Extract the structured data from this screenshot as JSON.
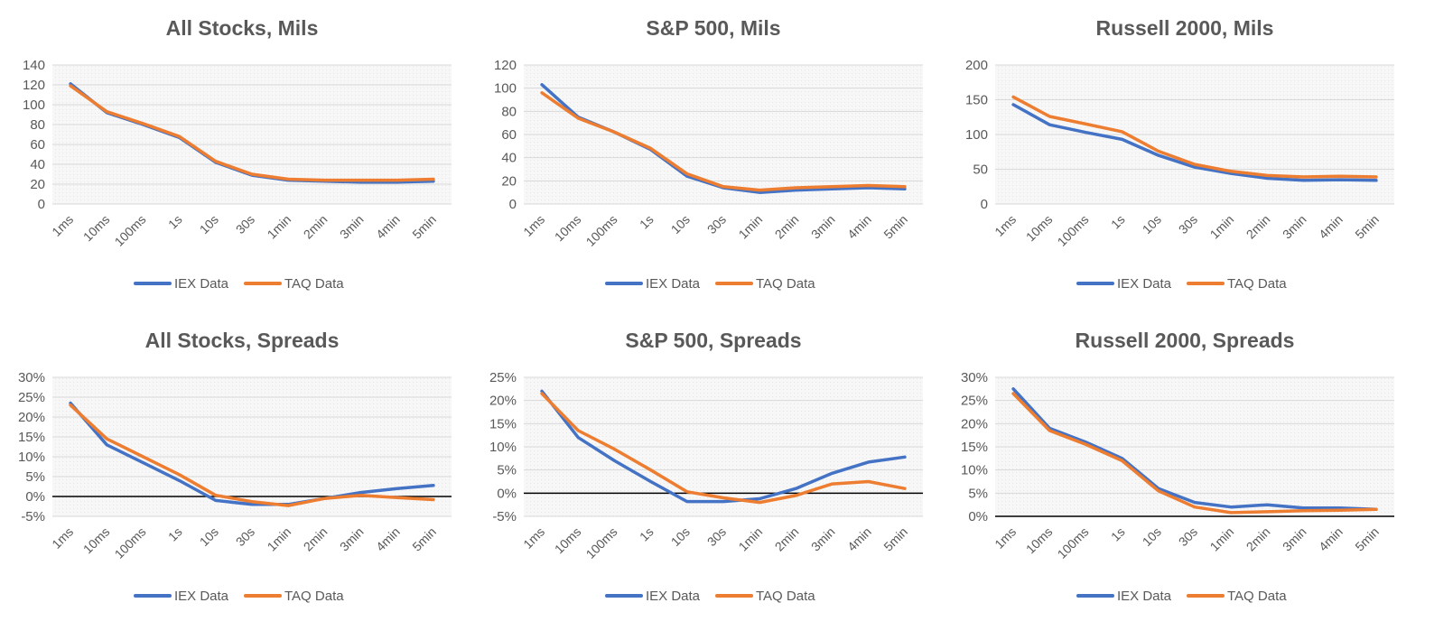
{
  "chart_data": [
    {
      "type": "line",
      "title": "All Stocks, Mils",
      "categories": [
        "1ms",
        "10ms",
        "100ms",
        "1s",
        "10s",
        "30s",
        "1min",
        "2min",
        "3min",
        "4min",
        "5min"
      ],
      "ylim": [
        0,
        140
      ],
      "yticks": [
        "0",
        "20",
        "40",
        "60",
        "80",
        "100",
        "120",
        "140"
      ],
      "ytick_values": [
        0,
        20,
        40,
        60,
        80,
        100,
        120,
        140
      ],
      "zero_line": false,
      "series": [
        {
          "name": "IEX Data",
          "color": "#4472C4",
          "values": [
            121,
            92,
            80,
            67,
            42,
            29,
            24,
            23,
            22,
            22,
            23
          ]
        },
        {
          "name": "TAQ Data",
          "color": "#ED7D31",
          "values": [
            119,
            93,
            81,
            68,
            43,
            30,
            25,
            24,
            24,
            24,
            25
          ]
        }
      ],
      "legend_position": "bottom",
      "grid": true
    },
    {
      "type": "line",
      "title": "S&P 500, Mils",
      "categories": [
        "1ms",
        "10ms",
        "100ms",
        "1s",
        "10s",
        "30s",
        "1min",
        "2min",
        "3min",
        "4min",
        "5min"
      ],
      "ylim": [
        0,
        120
      ],
      "yticks": [
        "0",
        "20",
        "40",
        "60",
        "80",
        "100",
        "120"
      ],
      "ytick_values": [
        0,
        20,
        40,
        60,
        80,
        100,
        120
      ],
      "zero_line": false,
      "series": [
        {
          "name": "IEX Data",
          "color": "#4472C4",
          "values": [
            103,
            75,
            62,
            47,
            24,
            14,
            10,
            12,
            13,
            14,
            13
          ]
        },
        {
          "name": "TAQ Data",
          "color": "#ED7D31",
          "values": [
            96,
            74,
            62,
            48,
            26,
            15,
            12,
            14,
            15,
            16,
            15
          ]
        }
      ],
      "legend_position": "bottom",
      "grid": true
    },
    {
      "type": "line",
      "title": "Russell 2000, Mils",
      "categories": [
        "1ms",
        "10ms",
        "100ms",
        "1s",
        "10s",
        "30s",
        "1min",
        "2min",
        "3min",
        "4min",
        "5min"
      ],
      "ylim": [
        0,
        200
      ],
      "yticks": [
        "0",
        "50",
        "100",
        "150",
        "200"
      ],
      "ytick_values": [
        0,
        50,
        100,
        150,
        200
      ],
      "zero_line": false,
      "series": [
        {
          "name": "IEX Data",
          "color": "#4472C4",
          "values": [
            143,
            114,
            103,
            93,
            70,
            53,
            44,
            37,
            34,
            35,
            34
          ]
        },
        {
          "name": "TAQ Data",
          "color": "#ED7D31",
          "values": [
            154,
            126,
            115,
            104,
            76,
            57,
            47,
            41,
            39,
            40,
            39
          ]
        }
      ],
      "legend_position": "bottom",
      "grid": true
    },
    {
      "type": "line",
      "title": "All Stocks, Spreads",
      "categories": [
        "1ms",
        "10ms",
        "100ms",
        "1s",
        "10s",
        "30s",
        "1min",
        "2min",
        "3min",
        "4min",
        "5min"
      ],
      "ylim": [
        -5,
        30
      ],
      "yticks": [
        "-5%",
        "0%",
        "5%",
        "10%",
        "15%",
        "20%",
        "25%",
        "30%"
      ],
      "ytick_values": [
        -5,
        0,
        5,
        10,
        15,
        20,
        25,
        30
      ],
      "zero_line": true,
      "series": [
        {
          "name": "IEX Data",
          "color": "#4472C4",
          "values": [
            23.5,
            13,
            8.5,
            4,
            -1,
            -2,
            -2,
            -0.5,
            1,
            2,
            2.8
          ]
        },
        {
          "name": "TAQ Data",
          "color": "#ED7D31",
          "values": [
            23,
            14.5,
            10,
            5.5,
            0.3,
            -1.3,
            -2.3,
            -0.5,
            0.3,
            -0.3,
            -0.8
          ]
        }
      ],
      "legend_position": "bottom",
      "grid": true
    },
    {
      "type": "line",
      "title": "S&P 500, Spreads",
      "categories": [
        "1ms",
        "10ms",
        "100ms",
        "1s",
        "10s",
        "30s",
        "1min",
        "2min",
        "3min",
        "4min",
        "5min"
      ],
      "ylim": [
        -5,
        25
      ],
      "yticks": [
        "-5%",
        "0%",
        "5%",
        "10%",
        "15%",
        "20%",
        "25%"
      ],
      "ytick_values": [
        -5,
        0,
        5,
        10,
        15,
        20,
        25
      ],
      "zero_line": true,
      "series": [
        {
          "name": "IEX Data",
          "color": "#4472C4",
          "values": [
            22,
            12,
            7,
            2.5,
            -1.8,
            -1.8,
            -1.2,
            1,
            4.3,
            6.7,
            7.8
          ]
        },
        {
          "name": "TAQ Data",
          "color": "#ED7D31",
          "values": [
            21.5,
            13.5,
            9.5,
            5,
            0.3,
            -1,
            -2,
            -0.5,
            2,
            2.5,
            1
          ]
        }
      ],
      "legend_position": "bottom",
      "grid": true
    },
    {
      "type": "line",
      "title": "Russell 2000, Spreads",
      "categories": [
        "1ms",
        "10ms",
        "100ms",
        "1s",
        "10s",
        "30s",
        "1min",
        "2min",
        "3min",
        "4min",
        "5min"
      ],
      "ylim": [
        0,
        30
      ],
      "yticks": [
        "0%",
        "5%",
        "10%",
        "15%",
        "20%",
        "25%",
        "30%"
      ],
      "ytick_values": [
        0,
        5,
        10,
        15,
        20,
        25,
        30
      ],
      "zero_line": true,
      "series": [
        {
          "name": "IEX Data",
          "color": "#4472C4",
          "values": [
            27.5,
            19,
            16,
            12.5,
            6,
            3,
            2,
            2.5,
            1.8,
            1.8,
            1.5
          ]
        },
        {
          "name": "TAQ Data",
          "color": "#ED7D31",
          "values": [
            26.5,
            18.5,
            15.5,
            12,
            5.5,
            2,
            0.8,
            1,
            1.2,
            1.3,
            1.5
          ]
        }
      ],
      "legend_position": "bottom",
      "grid": true
    }
  ]
}
